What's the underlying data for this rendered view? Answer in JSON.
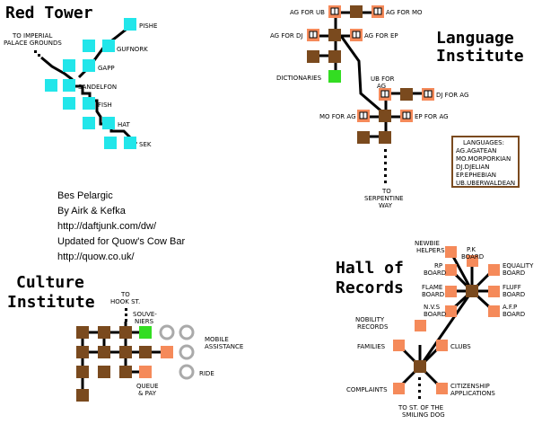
{
  "colors": {
    "cyan": "#22e6ea",
    "brown": "#7a4a1e",
    "orange": "#f58a5a",
    "green": "#33dd22",
    "grey": "#aaaaaa",
    "path": "#000000"
  },
  "red_tower": {
    "title": "Red Tower",
    "to_imperial": "TO IMPERIAL",
    "palace_grounds": "PALACE GROUNDS",
    "rooms": [
      "PISHE",
      "GUFNORK",
      "GAPP",
      "SANDELFON",
      "FISH",
      "HAT",
      "SEK"
    ]
  },
  "language_institute": {
    "title_line1": "Language",
    "title_line2": "Institute",
    "ag_for_ub": "AG FOR UB",
    "ag_for_mo": "AG FOR MO",
    "ag_for_dj": "AG FOR DJ",
    "ag_for_ep": "AG FOR EP",
    "dictionaries": "DICTIONARIES",
    "ub_for": "UB FOR",
    "ag": "AG",
    "dj_for_ag": "DJ FOR AG",
    "mo_for_ag": "MO FOR AG",
    "ep_for_ag": "EP FOR AG",
    "to": "TO",
    "serpentine": "SERPENTINE",
    "way": "WAY",
    "legend_title": "LANGUAGES:",
    "languages": [
      "AG.AGATEAN",
      "MO.MORPORKIAN",
      "DJ.DJELIAN",
      "EP.EPHEBIAN",
      "UB.UBERWALDEAN"
    ]
  },
  "credits": {
    "line1": "Bes Pelargic",
    "line2": "By Airk & Kefka",
    "line3": "http://daftjunk.com/dw/",
    "line4": "Updated for Quow's Cow Bar",
    "line5": "http://quow.co.uk/"
  },
  "culture_institute": {
    "title_line1": "Culture",
    "title_line2": "Institute",
    "to": "TO",
    "hook_st": "HOOK ST.",
    "souve": "SOUVE-",
    "niers": "NIERS",
    "mobile": "MOBILE",
    "assistance": "ASSISTANCE",
    "ride": "RIDE",
    "queue": "QUEUE",
    "and_pay": "& PAY"
  },
  "hall_of_records": {
    "title_line1": "Hall of",
    "title_line2": "Records",
    "newbie": "NEWBIE",
    "helpers": "HELPERS",
    "pk": "P.K",
    "pk_board": "BOARD",
    "rp": "RP",
    "rp_board": "BOARD",
    "equality": "EQUALITY",
    "equality_board": "BOARD",
    "flame": "FLAME",
    "flame_board": "BOARD",
    "fluff": "FLUFF",
    "fluff_board": "BOARD",
    "nvs": "N.V.S",
    "nvs_board": "BOARD",
    "afp": "A.F.P",
    "afp_board": "BOARD",
    "nobility": "NOBILITY",
    "records": "RECORDS",
    "families": "FAMILIES",
    "clubs": "CLUBS",
    "complaints": "COMPLAINTS",
    "citizenship": "CITIZENSHIP",
    "applications": "APPLICATIONS",
    "to_st_of_the": "TO ST. OF THE",
    "smiling_dog": "SMILING DOG"
  }
}
